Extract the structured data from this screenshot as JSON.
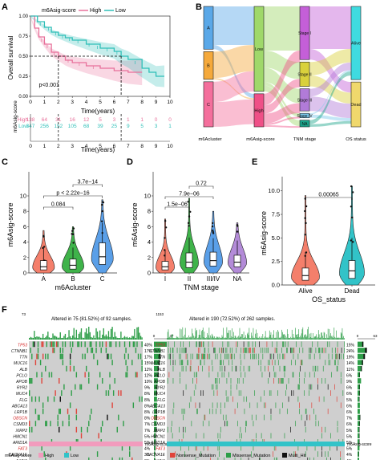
{
  "panel_labels": [
    "A",
    "B",
    "C",
    "D",
    "E",
    "F"
  ],
  "panelA": {
    "legend_title": "m6Asig-score",
    "legend": [
      "High",
      "Low"
    ],
    "ylabel": "Overall survival",
    "xlabel": "Time(years)",
    "y_ticks": [
      "0.00",
      "0.25",
      "0.50",
      "0.75",
      "1.00"
    ],
    "x_ticks": [
      "0",
      "1",
      "2",
      "3",
      "4",
      "5",
      "6",
      "7",
      "8",
      "9",
      "10"
    ],
    "pvalue": "p<0.001",
    "risk_title": "m6Asig-score",
    "risk_rows": [
      {
        "name": "High",
        "values": [
          "138",
          "64",
          "31",
          "16",
          "12",
          "5",
          "3",
          "1",
          "1",
          "0",
          "0"
        ]
      },
      {
        "name": "Low",
        "values": [
          "347",
          "256",
          "152",
          "105",
          "68",
          "39",
          "25",
          "9",
          "5",
          "3",
          "1"
        ]
      }
    ],
    "risk_xlabel": "Time(years)",
    "colors": {
      "high": "#e8709a",
      "low": "#2fbfb8"
    }
  },
  "panelB": {
    "axis_labels": [
      "m6Acluster",
      "m6Asig-score",
      "TNM stage",
      "OS status"
    ],
    "cluster_nodes": [
      "A",
      "B",
      "C"
    ],
    "score_nodes": [
      "Low",
      "High"
    ],
    "stage_nodes": [
      "Stage I",
      "Stage II",
      "Stage III",
      "Stage IV",
      "NA"
    ],
    "os_nodes": [
      "Alive",
      "Dead"
    ]
  },
  "panelC": {
    "ylabel": "m6Asig-score",
    "xlabel": "m6Acluster",
    "categories": [
      "A",
      "B",
      "C"
    ],
    "comparisons": [
      "0.084",
      "p < 2.22e−16",
      "3.7e−14"
    ],
    "y_ticks": [
      "0",
      "2",
      "4",
      "6",
      "8",
      "10"
    ]
  },
  "panelD": {
    "ylabel": "m6Asig-score",
    "xlabel": "TNM stage",
    "categories": [
      "I",
      "II",
      "III/IV",
      "NA"
    ],
    "comparisons": [
      "1.5e−06",
      "7.9e−06",
      "0.72"
    ],
    "y_ticks": [
      "0",
      "2",
      "4",
      "6",
      "8",
      "10"
    ]
  },
  "panelE": {
    "ylabel": "m6Asig-score",
    "xlabel": "OS_status",
    "categories": [
      "Alive",
      "Dead"
    ],
    "comparisons": [
      "0.00065"
    ],
    "y_ticks": [
      "0.0",
      "2.5",
      "5.0",
      "7.5",
      "10.0"
    ]
  },
  "panelF": {
    "left": {
      "top_max": "73",
      "title": "Altered in 75 (81.52%) of 92 samples.",
      "right_ticks": [
        "0",
        "37"
      ],
      "genes": [
        {
          "name": "TP53",
          "pct": "40%"
        },
        {
          "name": "CTNNB1",
          "pct": "17%"
        },
        {
          "name": "TTN",
          "pct": "17%"
        },
        {
          "name": "MUC16",
          "pct": "15%"
        },
        {
          "name": "ALB",
          "pct": "12%"
        },
        {
          "name": "PCLO",
          "pct": "12%"
        },
        {
          "name": "APOB",
          "pct": "10%"
        },
        {
          "name": "RYR2",
          "pct": "9%"
        },
        {
          "name": "MUC4",
          "pct": "8%"
        },
        {
          "name": "FLG",
          "pct": "8%"
        },
        {
          "name": "ABCA13",
          "pct": "8%"
        },
        {
          "name": "LRP1B",
          "pct": "8%"
        },
        {
          "name": "OBSCN",
          "pct": "8%"
        },
        {
          "name": "CSMD3",
          "pct": "7%"
        },
        {
          "name": "XIRP2",
          "pct": "7%"
        },
        {
          "name": "HMCN1",
          "pct": "5%"
        },
        {
          "name": "ARID1A",
          "pct": "5%"
        },
        {
          "name": "FAT3",
          "pct": "4%"
        },
        {
          "name": "CACNA1E",
          "pct": "3%"
        },
        {
          "name": "AXIN1",
          "pct": "3%"
        }
      ],
      "annotation": "m6Asig-score",
      "legend_title": "m6Asig-score",
      "legend": [
        "High",
        "Low"
      ]
    },
    "right": {
      "top_max": "1153",
      "title": "Altered in 190 (72.52%) of 262 samples.",
      "right_ticks": [
        "0",
        "63"
      ],
      "genes": [
        {
          "name": "TP53",
          "pct": "15%"
        },
        {
          "name": "CTNNB1",
          "pct": "24%"
        },
        {
          "name": "TTN",
          "pct": "19%"
        },
        {
          "name": "MUC16",
          "pct": "14%"
        },
        {
          "name": "ALB",
          "pct": "11%"
        },
        {
          "name": "PCLO",
          "pct": "6%"
        },
        {
          "name": "APOB",
          "pct": "9%"
        },
        {
          "name": "RYR2",
          "pct": "6%"
        },
        {
          "name": "MUC4",
          "pct": "6%"
        },
        {
          "name": "FLG",
          "pct": "5%"
        },
        {
          "name": "ABCA13",
          "pct": "6%"
        },
        {
          "name": "LRP1B",
          "pct": "6%"
        },
        {
          "name": "OBSCN",
          "pct": "7%"
        },
        {
          "name": "CSMD3",
          "pct": "6%"
        },
        {
          "name": "XIRP2",
          "pct": "5%"
        },
        {
          "name": "HMCN1",
          "pct": "5%"
        },
        {
          "name": "ARID1A",
          "pct": "5%"
        },
        {
          "name": "FAT3",
          "pct": "5%"
        },
        {
          "name": "CACNA1E",
          "pct": "4%"
        },
        {
          "name": "AXIN1",
          "pct": "4%"
        }
      ],
      "annotation": "m6Asig-score",
      "legend": [
        "Nonsense_Mutation",
        "Missense_Mutation",
        "Multi_Hit"
      ]
    },
    "red_genes": [
      "TP53",
      "OBSCN",
      "FAT3"
    ],
    "colors": {
      "missense": "#2e9e48",
      "nonsense": "#e0433a",
      "multi": "#111111",
      "bg": "#cfcfcf",
      "high": "#f29bbd",
      "low": "#32c3c8"
    }
  }
}
